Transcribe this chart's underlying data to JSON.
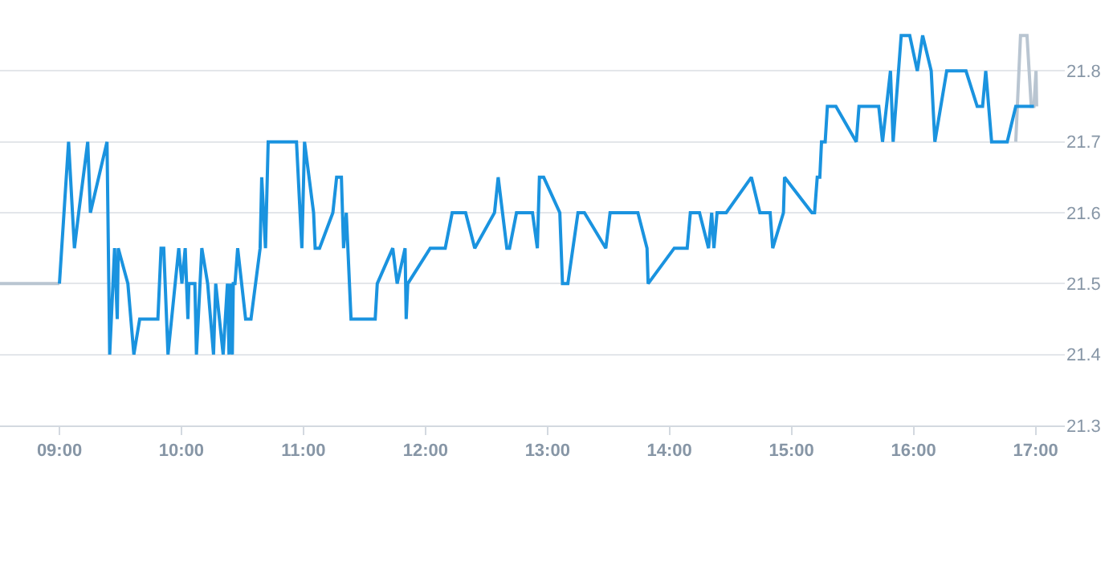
{
  "chart_data": {
    "type": "line",
    "xlim": [
      8.513,
      17.24
    ],
    "ylim": [
      21.3,
      21.9
    ],
    "xticks": [
      {
        "value": 9,
        "label": "09:00"
      },
      {
        "value": 10,
        "label": "10:00"
      },
      {
        "value": 11,
        "label": "11:00"
      },
      {
        "value": 12,
        "label": "12:00"
      },
      {
        "value": 13,
        "label": "13:00"
      },
      {
        "value": 14,
        "label": "14:00"
      },
      {
        "value": 15,
        "label": "15:00"
      },
      {
        "value": 16,
        "label": "16:00"
      },
      {
        "value": 17,
        "label": "17:00"
      }
    ],
    "yticks": [
      21.3,
      21.4,
      21.5,
      21.6,
      21.7,
      21.8
    ],
    "grid": "y",
    "marker": "none",
    "line_style": "solid",
    "series": [
      {
        "color": "#b9c5d1",
        "x": [
          8.513,
          9.0
        ],
        "values": [
          21.5,
          21.5
        ]
      },
      {
        "color": "#b9c5d1",
        "x": [
          16.838,
          16.877,
          16.93,
          16.965,
          16.987,
          17.004,
          17.009
        ],
        "values": [
          21.7,
          21.85,
          21.85,
          21.75,
          21.75,
          21.8,
          21.75
        ]
      },
      {
        "color": "#1a93df",
        "x": [
          9.0,
          9.075,
          9.123,
          9.158,
          9.232,
          9.254,
          9.39,
          9.412,
          9.452,
          9.474,
          9.482,
          9.561,
          9.61,
          9.658,
          9.807,
          9.833,
          9.855,
          9.89,
          9.978,
          10.004,
          10.031,
          10.053,
          10.061,
          10.11,
          10.123,
          10.167,
          10.215,
          10.263,
          10.281,
          10.342,
          10.377,
          10.39,
          10.404,
          10.417,
          10.425,
          10.439,
          10.461,
          10.526,
          10.57,
          10.645,
          10.658,
          10.689,
          10.711,
          10.943,
          10.987,
          11.009,
          11.083,
          11.096,
          11.132,
          11.241,
          11.272,
          11.311,
          11.329,
          11.351,
          11.39,
          11.588,
          11.605,
          11.732,
          11.768,
          11.833,
          11.842,
          11.855,
          12.039,
          12.162,
          12.219,
          12.329,
          12.404,
          12.566,
          12.596,
          12.667,
          12.689,
          12.746,
          12.877,
          12.917,
          12.934,
          12.969,
          13.101,
          13.123,
          13.167,
          13.25,
          13.303,
          13.478,
          13.513,
          13.741,
          13.816,
          13.825,
          14.039,
          14.145,
          14.171,
          14.246,
          14.32,
          14.346,
          14.364,
          14.39,
          14.465,
          14.671,
          14.741,
          14.825,
          14.846,
          14.934,
          14.943,
          15.167,
          15.189,
          15.211,
          15.232,
          15.246,
          15.276,
          15.294,
          15.364,
          15.531,
          15.553,
          15.715,
          15.746,
          15.811,
          15.833,
          15.899,
          15.969,
          16.031,
          16.075,
          16.145,
          16.175,
          16.272,
          16.43,
          16.522,
          16.566,
          16.592,
          16.64,
          16.768,
          16.838,
          16.987
        ],
        "values": [
          21.5,
          21.7,
          21.55,
          21.6,
          21.7,
          21.6,
          21.7,
          21.4,
          21.55,
          21.45,
          21.55,
          21.5,
          21.4,
          21.45,
          21.45,
          21.55,
          21.55,
          21.4,
          21.55,
          21.5,
          21.55,
          21.45,
          21.5,
          21.5,
          21.4,
          21.55,
          21.5,
          21.4,
          21.5,
          21.4,
          21.5,
          21.4,
          21.5,
          21.4,
          21.5,
          21.5,
          21.55,
          21.45,
          21.45,
          21.55,
          21.65,
          21.55,
          21.7,
          21.7,
          21.55,
          21.7,
          21.6,
          21.55,
          21.55,
          21.6,
          21.65,
          21.65,
          21.55,
          21.6,
          21.45,
          21.45,
          21.5,
          21.55,
          21.5,
          21.55,
          21.45,
          21.5,
          21.55,
          21.55,
          21.6,
          21.6,
          21.55,
          21.6,
          21.65,
          21.55,
          21.55,
          21.6,
          21.6,
          21.55,
          21.65,
          21.65,
          21.6,
          21.5,
          21.5,
          21.6,
          21.6,
          21.55,
          21.6,
          21.6,
          21.55,
          21.5,
          21.55,
          21.55,
          21.6,
          21.6,
          21.55,
          21.6,
          21.55,
          21.6,
          21.6,
          21.65,
          21.6,
          21.6,
          21.55,
          21.6,
          21.65,
          21.6,
          21.6,
          21.65,
          21.65,
          21.7,
          21.7,
          21.75,
          21.75,
          21.7,
          21.75,
          21.75,
          21.7,
          21.8,
          21.7,
          21.85,
          21.85,
          21.8,
          21.85,
          21.8,
          21.7,
          21.8,
          21.8,
          21.75,
          21.75,
          21.8,
          21.7,
          21.7,
          21.75,
          21.75
        ]
      }
    ]
  }
}
